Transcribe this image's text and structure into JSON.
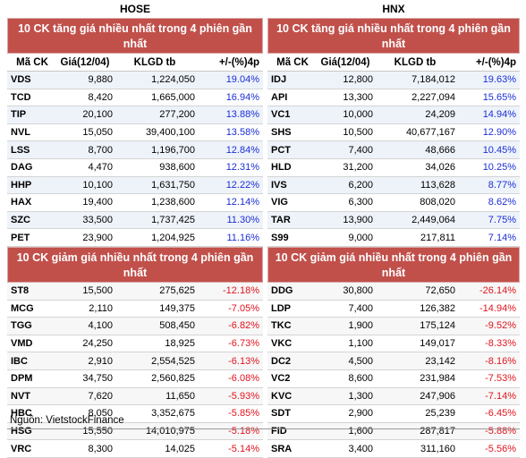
{
  "hose": {
    "title": "HOSE",
    "up_section": "10 CK tăng giá nhiều nhất trong 4 phiên gần nhất",
    "down_section": "10 CK giảm giá nhiều nhất trong 4 phiên gần nhất",
    "headers": [
      "Mã CK",
      "Giá(12/04)",
      "KLGD tb",
      "+/-(%)4p"
    ],
    "gainers": [
      [
        "VDS",
        "9,880",
        "1,224,050",
        "19.04%"
      ],
      [
        "TCD",
        "8,420",
        "1,665,000",
        "16.94%"
      ],
      [
        "TIP",
        "20,100",
        "277,200",
        "13.88%"
      ],
      [
        "NVL",
        "15,050",
        "39,400,100",
        "13.58%"
      ],
      [
        "LSS",
        "8,700",
        "1,196,700",
        "12.84%"
      ],
      [
        "DAG",
        "4,470",
        "938,600",
        "12.31%"
      ],
      [
        "HHP",
        "10,100",
        "1,631,750",
        "12.22%"
      ],
      [
        "HAX",
        "19,400",
        "1,238,600",
        "12.14%"
      ],
      [
        "SZC",
        "33,500",
        "1,737,425",
        "11.30%"
      ],
      [
        "PET",
        "23,900",
        "1,204,925",
        "11.16%"
      ]
    ],
    "losers": [
      [
        "ST8",
        "15,500",
        "275,625",
        "-12.18%"
      ],
      [
        "MCG",
        "2,110",
        "149,375",
        "-7.05%"
      ],
      [
        "TGG",
        "4,100",
        "508,450",
        "-6.82%"
      ],
      [
        "VMD",
        "24,250",
        "18,925",
        "-6.73%"
      ],
      [
        "IBC",
        "2,910",
        "2,554,525",
        "-6.13%"
      ],
      [
        "DPM",
        "34,750",
        "2,560,825",
        "-6.08%"
      ],
      [
        "NVT",
        "7,620",
        "11,650",
        "-5.93%"
      ],
      [
        "HBC",
        "8,050",
        "3,352,675",
        "-5.85%"
      ],
      [
        "HSG",
        "15,550",
        "14,010,975",
        "-5.18%"
      ],
      [
        "VRC",
        "8,300",
        "14,025",
        "-5.14%"
      ]
    ]
  },
  "hnx": {
    "title": "HNX",
    "up_section": "10 CK tăng giá nhiều nhất trong 4 phiên gần nhất",
    "down_section": "10 CK giảm giá nhiều nhất trong 4 phiên gần nhất",
    "headers": [
      "Mã CK",
      "Giá(12/04)",
      "KLGD tb",
      "+/-(%)4p"
    ],
    "gainers": [
      [
        "IDJ",
        "12,800",
        "7,184,012",
        "19.63%"
      ],
      [
        "API",
        "13,300",
        "2,227,094",
        "15.65%"
      ],
      [
        "VC1",
        "10,000",
        "24,209",
        "14.94%"
      ],
      [
        "SHS",
        "10,500",
        "40,677,167",
        "12.90%"
      ],
      [
        "PCT",
        "7,400",
        "48,666",
        "10.45%"
      ],
      [
        "HLD",
        "31,200",
        "34,026",
        "10.25%"
      ],
      [
        "IVS",
        "6,200",
        "113,628",
        "8.77%"
      ],
      [
        "VIG",
        "6,300",
        "808,020",
        "8.62%"
      ],
      [
        "TAR",
        "13,900",
        "2,449,064",
        "7.75%"
      ],
      [
        "S99",
        "9,000",
        "217,811",
        "7.14%"
      ]
    ],
    "losers": [
      [
        "DDG",
        "30,800",
        "72,650",
        "-26.14%"
      ],
      [
        "LDP",
        "7,400",
        "126,382",
        "-14.94%"
      ],
      [
        "TKC",
        "1,900",
        "175,124",
        "-9.52%"
      ],
      [
        "VKC",
        "1,100",
        "149,017",
        "-8.33%"
      ],
      [
        "DC2",
        "4,500",
        "23,142",
        "-8.16%"
      ],
      [
        "VC2",
        "8,600",
        "231,984",
        "-7.53%"
      ],
      [
        "KVC",
        "1,300",
        "247,906",
        "-7.14%"
      ],
      [
        "SDT",
        "2,900",
        "25,239",
        "-6.45%"
      ],
      [
        "FID",
        "1,600",
        "287,817",
        "-5.88%"
      ],
      [
        "SRA",
        "3,400",
        "311,160",
        "-5.56%"
      ]
    ]
  },
  "source": "Nguồn: VietstockFinance",
  "colors": {
    "header_bg": "#c1504b",
    "gain": "#1b2ed6",
    "loss": "#e0141e"
  }
}
